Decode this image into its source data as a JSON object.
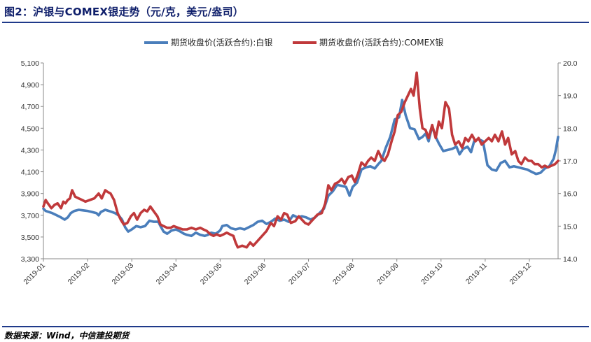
{
  "figure": {
    "title": "图2：沪银与COMEX银走势（元/克，美元/盎司）",
    "source": "数据来源：Wind，中信建投期货"
  },
  "chart_data": {
    "type": "line",
    "x_categories": [
      "2019-01",
      "2019-02",
      "2019-03",
      "2019-04",
      "2019-05",
      "2019-06",
      "2019-07",
      "2019-08",
      "2019-09",
      "2019-10",
      "2019-11",
      "2019-12"
    ],
    "x_domain": [
      0,
      11.65
    ],
    "y_left": {
      "lim": [
        3300,
        5100
      ],
      "ticks": [
        "3,300",
        "3,500",
        "3,700",
        "3,900",
        "4,100",
        "4,300",
        "4,500",
        "4,700",
        "4,900",
        "5,100"
      ],
      "tick_values": [
        3300,
        3500,
        3700,
        3900,
        4100,
        4300,
        4500,
        4700,
        4900,
        5100
      ]
    },
    "y_right": {
      "lim": [
        14.0,
        20.0
      ],
      "ticks": [
        "14.0",
        "15.0",
        "16.0",
        "17.0",
        "18.0",
        "19.0",
        "20.0"
      ],
      "tick_values": [
        14,
        15,
        16,
        17,
        18,
        19,
        20
      ]
    },
    "grid": false,
    "legend_position": "top-center",
    "series": [
      {
        "name": "期货收盘价(活跃合约):白银",
        "axis": "left",
        "color": "#4a7ebb",
        "points": [
          [
            0.0,
            3760
          ],
          [
            0.05,
            3740
          ],
          [
            0.12,
            3730
          ],
          [
            0.2,
            3720
          ],
          [
            0.3,
            3700
          ],
          [
            0.4,
            3680
          ],
          [
            0.48,
            3660
          ],
          [
            0.55,
            3680
          ],
          [
            0.62,
            3720
          ],
          [
            0.7,
            3740
          ],
          [
            0.8,
            3750
          ],
          [
            0.9,
            3745
          ],
          [
            1.0,
            3740
          ],
          [
            1.1,
            3730
          ],
          [
            1.2,
            3720
          ],
          [
            1.25,
            3700
          ],
          [
            1.3,
            3730
          ],
          [
            1.4,
            3750
          ],
          [
            1.48,
            3740
          ],
          [
            1.55,
            3730
          ],
          [
            1.62,
            3720
          ],
          [
            1.7,
            3700
          ],
          [
            1.78,
            3660
          ],
          [
            1.85,
            3590
          ],
          [
            1.92,
            3550
          ],
          [
            2.0,
            3570
          ],
          [
            2.1,
            3600
          ],
          [
            2.2,
            3590
          ],
          [
            2.3,
            3600
          ],
          [
            2.4,
            3650
          ],
          [
            2.5,
            3640
          ],
          [
            2.6,
            3640
          ],
          [
            2.65,
            3600
          ],
          [
            2.72,
            3550
          ],
          [
            2.8,
            3530
          ],
          [
            2.9,
            3560
          ],
          [
            3.0,
            3570
          ],
          [
            3.1,
            3550
          ],
          [
            3.18,
            3530
          ],
          [
            3.25,
            3520
          ],
          [
            3.35,
            3510
          ],
          [
            3.45,
            3540
          ],
          [
            3.55,
            3520
          ],
          [
            3.65,
            3510
          ],
          [
            3.72,
            3520
          ],
          [
            3.8,
            3540
          ],
          [
            3.9,
            3530
          ],
          [
            4.0,
            3560
          ],
          [
            4.05,
            3600
          ],
          [
            4.15,
            3610
          ],
          [
            4.25,
            3580
          ],
          [
            4.35,
            3570
          ],
          [
            4.45,
            3580
          ],
          [
            4.55,
            3570
          ],
          [
            4.65,
            3590
          ],
          [
            4.75,
            3610
          ],
          [
            4.85,
            3640
          ],
          [
            4.95,
            3650
          ],
          [
            5.05,
            3620
          ],
          [
            5.15,
            3640
          ],
          [
            5.25,
            3670
          ],
          [
            5.35,
            3650
          ],
          [
            5.45,
            3660
          ],
          [
            5.55,
            3640
          ],
          [
            5.65,
            3700
          ],
          [
            5.75,
            3680
          ],
          [
            5.85,
            3690
          ],
          [
            5.95,
            3680
          ],
          [
            6.05,
            3660
          ],
          [
            6.15,
            3680
          ],
          [
            6.25,
            3720
          ],
          [
            6.35,
            3760
          ],
          [
            6.45,
            3880
          ],
          [
            6.55,
            3920
          ],
          [
            6.65,
            3980
          ],
          [
            6.75,
            3970
          ],
          [
            6.85,
            3960
          ],
          [
            6.93,
            3880
          ],
          [
            7.0,
            3960
          ],
          [
            7.1,
            4000
          ],
          [
            7.2,
            4120
          ],
          [
            7.3,
            4140
          ],
          [
            7.4,
            4150
          ],
          [
            7.5,
            4130
          ],
          [
            7.58,
            4170
          ],
          [
            7.65,
            4200
          ],
          [
            7.75,
            4320
          ],
          [
            7.85,
            4420
          ],
          [
            7.95,
            4580
          ],
          [
            8.05,
            4600
          ],
          [
            8.12,
            4760
          ],
          [
            8.2,
            4620
          ],
          [
            8.3,
            4500
          ],
          [
            8.4,
            4490
          ],
          [
            8.5,
            4400
          ],
          [
            8.58,
            4420
          ],
          [
            8.65,
            4450
          ],
          [
            8.72,
            4380
          ],
          [
            8.8,
            4520
          ],
          [
            8.88,
            4420
          ],
          [
            8.95,
            4360
          ],
          [
            9.05,
            4290
          ],
          [
            9.15,
            4300
          ],
          [
            9.25,
            4310
          ],
          [
            9.35,
            4330
          ],
          [
            9.42,
            4260
          ],
          [
            9.5,
            4310
          ],
          [
            9.6,
            4330
          ],
          [
            9.68,
            4280
          ],
          [
            9.75,
            4380
          ],
          [
            9.85,
            4400
          ],
          [
            9.95,
            4380
          ],
          [
            10.05,
            4160
          ],
          [
            10.15,
            4120
          ],
          [
            10.25,
            4110
          ],
          [
            10.35,
            4180
          ],
          [
            10.45,
            4200
          ],
          [
            10.55,
            4140
          ],
          [
            10.65,
            4150
          ],
          [
            10.75,
            4140
          ],
          [
            10.85,
            4130
          ],
          [
            10.95,
            4120
          ],
          [
            11.05,
            4100
          ],
          [
            11.15,
            4080
          ],
          [
            11.25,
            4090
          ],
          [
            11.35,
            4130
          ],
          [
            11.45,
            4150
          ],
          [
            11.55,
            4220
          ],
          [
            11.6,
            4300
          ],
          [
            11.65,
            4420
          ]
        ]
      },
      {
        "name": "期货收盘价(活跃合约):COMEX银",
        "axis": "right",
        "color": "#c0393b",
        "points": [
          [
            0.0,
            15.6
          ],
          [
            0.05,
            15.8
          ],
          [
            0.1,
            15.7
          ],
          [
            0.18,
            15.55
          ],
          [
            0.25,
            15.65
          ],
          [
            0.32,
            15.7
          ],
          [
            0.4,
            15.55
          ],
          [
            0.45,
            15.75
          ],
          [
            0.5,
            15.7
          ],
          [
            0.55,
            15.8
          ],
          [
            0.6,
            15.85
          ],
          [
            0.65,
            16.1
          ],
          [
            0.72,
            15.9
          ],
          [
            0.8,
            15.85
          ],
          [
            0.88,
            15.8
          ],
          [
            0.95,
            15.75
          ],
          [
            1.05,
            15.8
          ],
          [
            1.15,
            15.85
          ],
          [
            1.25,
            16.0
          ],
          [
            1.32,
            15.85
          ],
          [
            1.4,
            16.1
          ],
          [
            1.45,
            16.05
          ],
          [
            1.52,
            16.0
          ],
          [
            1.6,
            15.8
          ],
          [
            1.68,
            15.4
          ],
          [
            1.75,
            15.2
          ],
          [
            1.82,
            15.05
          ],
          [
            1.9,
            15.1
          ],
          [
            1.98,
            15.3
          ],
          [
            2.05,
            15.4
          ],
          [
            2.12,
            15.2
          ],
          [
            2.2,
            15.4
          ],
          [
            2.28,
            15.5
          ],
          [
            2.35,
            15.45
          ],
          [
            2.42,
            15.6
          ],
          [
            2.5,
            15.45
          ],
          [
            2.58,
            15.3
          ],
          [
            2.65,
            15.05
          ],
          [
            2.72,
            15.0
          ],
          [
            2.8,
            14.95
          ],
          [
            2.88,
            14.95
          ],
          [
            2.95,
            15.0
          ],
          [
            3.05,
            14.95
          ],
          [
            3.15,
            14.9
          ],
          [
            3.25,
            14.9
          ],
          [
            3.35,
            14.95
          ],
          [
            3.45,
            14.9
          ],
          [
            3.55,
            14.95
          ],
          [
            3.62,
            14.9
          ],
          [
            3.7,
            14.85
          ],
          [
            3.78,
            14.75
          ],
          [
            3.85,
            14.7
          ],
          [
            3.92,
            14.75
          ],
          [
            4.0,
            14.7
          ],
          [
            4.08,
            14.75
          ],
          [
            4.15,
            14.8
          ],
          [
            4.22,
            14.75
          ],
          [
            4.3,
            14.7
          ],
          [
            4.35,
            14.5
          ],
          [
            4.4,
            14.35
          ],
          [
            4.5,
            14.4
          ],
          [
            4.6,
            14.35
          ],
          [
            4.68,
            14.5
          ],
          [
            4.75,
            14.4
          ],
          [
            4.85,
            14.55
          ],
          [
            4.95,
            14.7
          ],
          [
            5.05,
            14.85
          ],
          [
            5.15,
            15.1
          ],
          [
            5.22,
            15.0
          ],
          [
            5.3,
            15.3
          ],
          [
            5.38,
            15.2
          ],
          [
            5.45,
            15.4
          ],
          [
            5.52,
            15.35
          ],
          [
            5.6,
            15.1
          ],
          [
            5.7,
            15.15
          ],
          [
            5.78,
            15.3
          ],
          [
            5.85,
            15.2
          ],
          [
            5.92,
            15.1
          ],
          [
            6.0,
            15.05
          ],
          [
            6.1,
            15.2
          ],
          [
            6.2,
            15.35
          ],
          [
            6.3,
            15.4
          ],
          [
            6.38,
            15.7
          ],
          [
            6.45,
            16.25
          ],
          [
            6.52,
            16.1
          ],
          [
            6.6,
            16.3
          ],
          [
            6.68,
            16.35
          ],
          [
            6.75,
            16.45
          ],
          [
            6.82,
            16.3
          ],
          [
            6.9,
            16.5
          ],
          [
            6.98,
            16.55
          ],
          [
            7.05,
            16.35
          ],
          [
            7.12,
            16.6
          ],
          [
            7.2,
            16.95
          ],
          [
            7.28,
            16.85
          ],
          [
            7.35,
            17.0
          ],
          [
            7.42,
            17.1
          ],
          [
            7.5,
            17.0
          ],
          [
            7.58,
            17.3
          ],
          [
            7.65,
            17.1
          ],
          [
            7.72,
            17.0
          ],
          [
            7.8,
            17.2
          ],
          [
            7.88,
            17.6
          ],
          [
            7.95,
            17.9
          ],
          [
            8.02,
            18.4
          ],
          [
            8.1,
            18.5
          ],
          [
            8.18,
            18.8
          ],
          [
            8.25,
            19.0
          ],
          [
            8.32,
            19.2
          ],
          [
            8.38,
            19.0
          ],
          [
            8.45,
            19.7
          ],
          [
            8.52,
            18.6
          ],
          [
            8.58,
            18.0
          ],
          [
            8.65,
            17.95
          ],
          [
            8.72,
            17.7
          ],
          [
            8.8,
            18.1
          ],
          [
            8.88,
            17.7
          ],
          [
            8.95,
            18.2
          ],
          [
            9.02,
            18.0
          ],
          [
            9.1,
            18.8
          ],
          [
            9.18,
            18.6
          ],
          [
            9.25,
            17.8
          ],
          [
            9.32,
            17.5
          ],
          [
            9.4,
            17.6
          ],
          [
            9.48,
            17.4
          ],
          [
            9.55,
            17.7
          ],
          [
            9.62,
            17.6
          ],
          [
            9.7,
            17.8
          ],
          [
            9.78,
            17.6
          ],
          [
            9.85,
            17.7
          ],
          [
            9.92,
            17.5
          ],
          [
            10.0,
            17.6
          ],
          [
            10.08,
            17.7
          ],
          [
            10.15,
            17.6
          ],
          [
            10.22,
            17.8
          ],
          [
            10.3,
            17.6
          ],
          [
            10.38,
            17.9
          ],
          [
            10.45,
            17.5
          ],
          [
            10.52,
            17.7
          ],
          [
            10.6,
            17.2
          ],
          [
            10.68,
            17.3
          ],
          [
            10.75,
            17.0
          ],
          [
            10.82,
            16.9
          ],
          [
            10.9,
            17.1
          ],
          [
            10.98,
            17.0
          ],
          [
            11.05,
            17.0
          ],
          [
            11.12,
            16.9
          ],
          [
            11.2,
            16.9
          ],
          [
            11.28,
            16.8
          ],
          [
            11.35,
            16.85
          ],
          [
            11.42,
            16.8
          ],
          [
            11.5,
            16.85
          ],
          [
            11.58,
            16.9
          ],
          [
            11.65,
            17.0
          ]
        ]
      }
    ]
  }
}
